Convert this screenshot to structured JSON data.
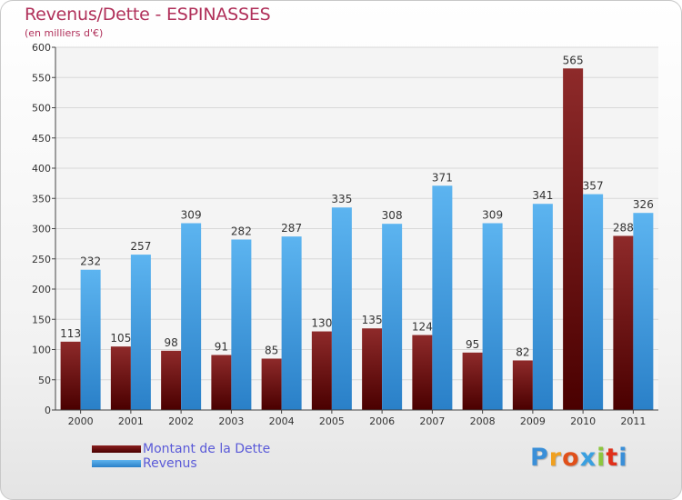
{
  "chart_data": {
    "type": "bar",
    "title": "Revenus/Dette - ESPINASSES",
    "subtitle": "(en milliers d'€)",
    "categories": [
      "2000",
      "2001",
      "2002",
      "2003",
      "2004",
      "2005",
      "2006",
      "2007",
      "2008",
      "2009",
      "2010",
      "2011"
    ],
    "series": [
      {
        "name": "Montant de la Dette",
        "values": [
          113,
          105,
          98,
          91,
          85,
          130,
          135,
          124,
          95,
          82,
          565,
          288
        ],
        "color": "#6e0e0e"
      },
      {
        "name": "Revenus",
        "values": [
          232,
          257,
          309,
          282,
          287,
          335,
          308,
          371,
          309,
          341,
          357,
          326
        ],
        "color": "#4aa3e6"
      }
    ],
    "ylim": [
      0,
      600
    ],
    "yticks": [
      0,
      50,
      100,
      150,
      200,
      250,
      300,
      350,
      400,
      450,
      500,
      550,
      600
    ],
    "grid": true,
    "legend": "bottom-left"
  },
  "logo": {
    "text": "Proxiti"
  }
}
